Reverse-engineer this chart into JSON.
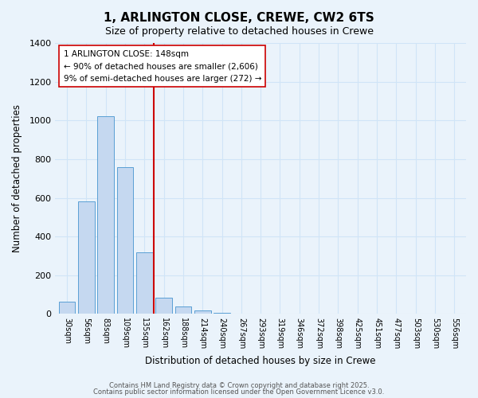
{
  "title": "1, ARLINGTON CLOSE, CREWE, CW2 6TS",
  "subtitle": "Size of property relative to detached houses in Crewe",
  "xlabel": "Distribution of detached houses by size in Crewe",
  "ylabel": "Number of detached properties",
  "bar_values": [
    65,
    580,
    1020,
    760,
    320,
    85,
    40,
    18,
    5,
    0,
    0,
    0,
    0,
    0,
    0,
    0,
    0,
    0,
    0,
    0,
    0
  ],
  "categories": [
    "30sqm",
    "56sqm",
    "83sqm",
    "109sqm",
    "135sqm",
    "162sqm",
    "188sqm",
    "214sqm",
    "240sqm",
    "267sqm",
    "293sqm",
    "319sqm",
    "346sqm",
    "372sqm",
    "398sqm",
    "425sqm",
    "451sqm",
    "477sqm",
    "503sqm",
    "530sqm",
    "556sqm"
  ],
  "bar_color": "#c5d8f0",
  "bar_edge_color": "#5a9fd4",
  "vline_color": "#cc0000",
  "annotation_title": "1 ARLINGTON CLOSE: 148sqm",
  "annotation_line1": "← 90% of detached houses are smaller (2,606)",
  "annotation_line2": "9% of semi-detached houses are larger (272) →",
  "annotation_box_color": "#ffffff",
  "annotation_box_edge": "#cc0000",
  "ylim": [
    0,
    1400
  ],
  "yticks": [
    0,
    200,
    400,
    600,
    800,
    1000,
    1200,
    1400
  ],
  "grid_color": "#d0e4f7",
  "background_color": "#eaf3fb",
  "footer1": "Contains HM Land Registry data © Crown copyright and database right 2025.",
  "footer2": "Contains public sector information licensed under the Open Government Licence v3.0."
}
